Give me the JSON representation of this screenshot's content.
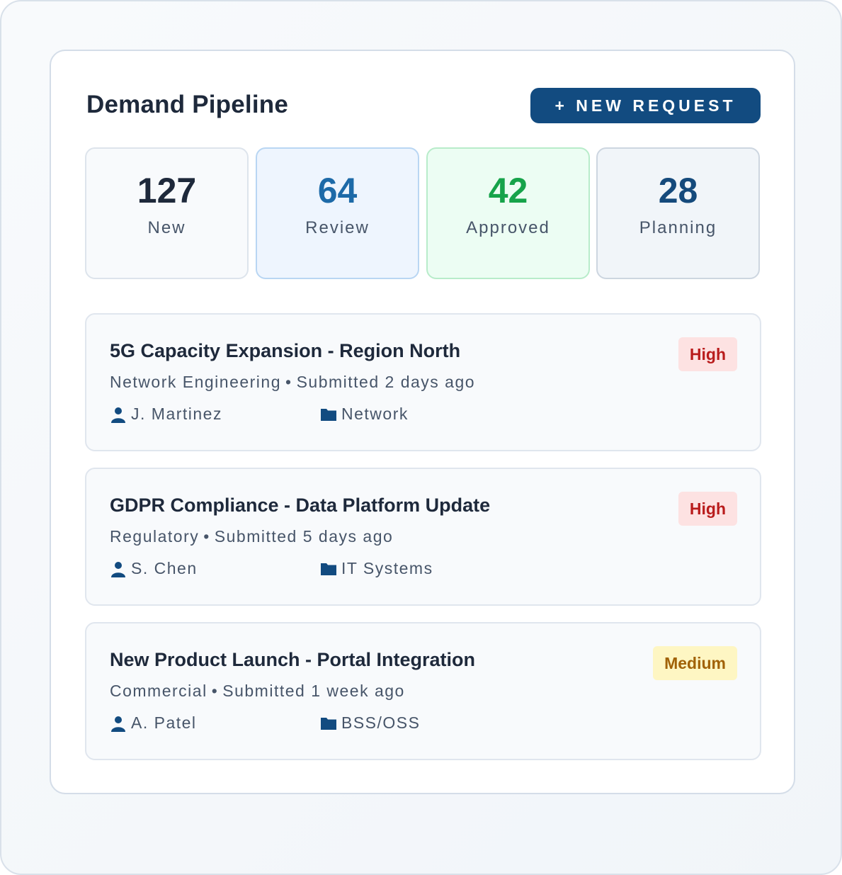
{
  "header": {
    "title": "Demand Pipeline",
    "new_request_label": "+ NEW REQUEST"
  },
  "stats": [
    {
      "value": "127",
      "label": "New"
    },
    {
      "value": "64",
      "label": "Review"
    },
    {
      "value": "42",
      "label": "Approved"
    },
    {
      "value": "28",
      "label": "Planning"
    }
  ],
  "requests": [
    {
      "title": "5G Capacity Expansion - Region North",
      "department": "Network Engineering",
      "submitted": "Submitted 2 days ago",
      "owner": "J. Martinez",
      "category": "Network",
      "priority": "High"
    },
    {
      "title": "GDPR Compliance - Data Platform Update",
      "department": "Regulatory",
      "submitted": "Submitted 5 days ago",
      "owner": "S. Chen",
      "category": "IT Systems",
      "priority": "High"
    },
    {
      "title": "New Product Launch - Portal Integration",
      "department": "Commercial",
      "submitted": "Submitted 1 week ago",
      "owner": "A. Patel",
      "category": "BSS/OSS",
      "priority": "Medium"
    }
  ],
  "separator": "•",
  "icons": {
    "owner": "user-icon",
    "category": "folder-icon"
  },
  "colors": {
    "brand": "#124b80",
    "review": "#1d6aa8",
    "approved": "#16a34a",
    "high": "#b91c1c",
    "medium": "#a16207"
  }
}
